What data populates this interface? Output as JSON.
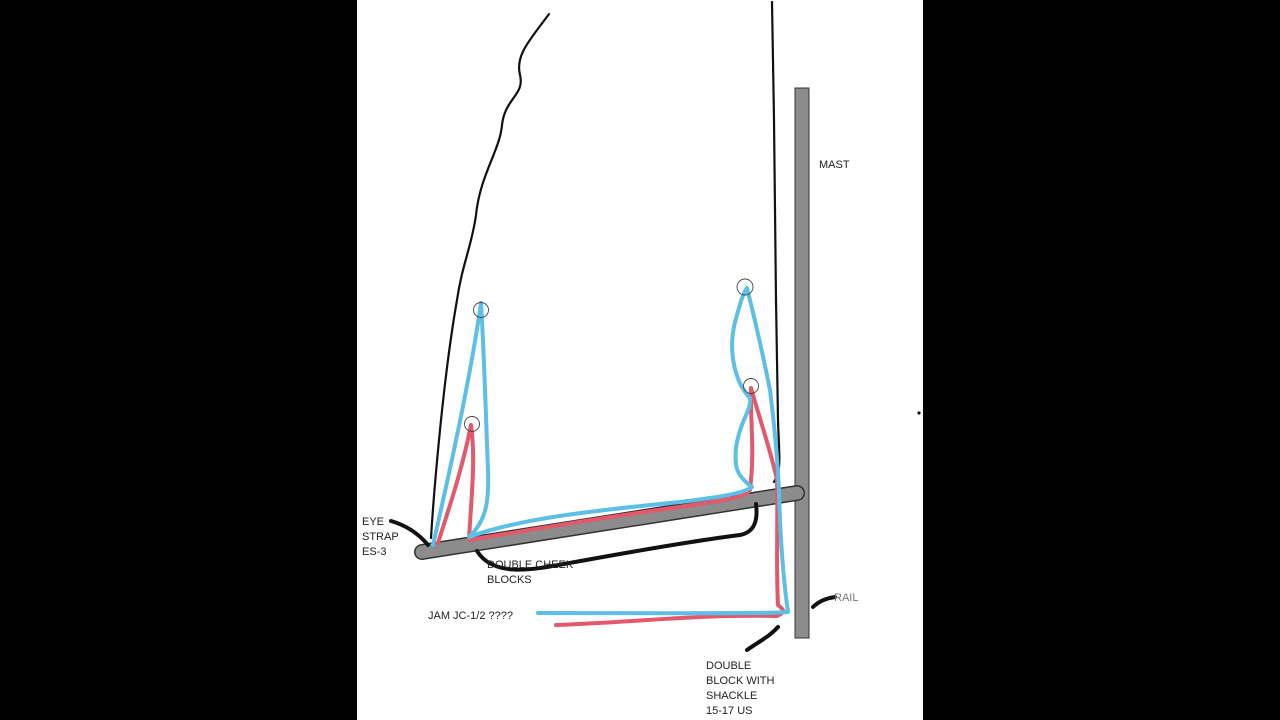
{
  "colors": {
    "background": "#000000",
    "paper": "#ffffff",
    "line_blue": "#5bbfe6",
    "line_red": "#e4586b",
    "spar_gray": "#8c8c8c",
    "outline": "#111111",
    "rail_text": "#777777"
  },
  "labels": {
    "mast": "MAST",
    "eye_strap": [
      "EYE",
      "STRAP",
      "ES-3"
    ],
    "double_cheek": [
      "DOUBLE CHEEK",
      "BLOCKS"
    ],
    "jam": "JAM  JC-1/2 ????",
    "rail": "RAIL",
    "double_block": [
      "DOUBLE",
      "BLOCK WITH",
      "SHACKLE",
      "15-17 US"
    ]
  }
}
